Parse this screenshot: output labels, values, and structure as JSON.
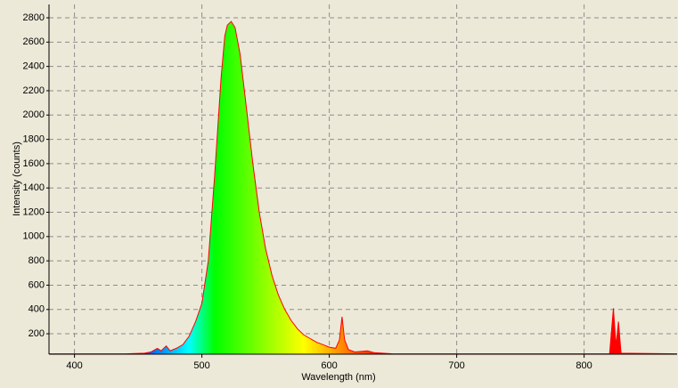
{
  "chart_data": {
    "type": "area",
    "x_label": "Wavelength (nm)",
    "y_label": "Intensity (counts)",
    "x": [
      380,
      400,
      440,
      455,
      460,
      465,
      468,
      472,
      475,
      480,
      485,
      490,
      495,
      500,
      505,
      510,
      515,
      518,
      520,
      523,
      526,
      530,
      535,
      540,
      545,
      550,
      555,
      560,
      565,
      570,
      575,
      580,
      585,
      590,
      595,
      600,
      605,
      608,
      610,
      612,
      615,
      620,
      630,
      635,
      650,
      700,
      820,
      823,
      825,
      827,
      829,
      873
    ],
    "y": [
      35,
      35,
      35,
      40,
      50,
      80,
      60,
      100,
      60,
      80,
      110,
      180,
      300,
      450,
      800,
      1500,
      2300,
      2650,
      2740,
      2770,
      2720,
      2500,
      2050,
      1600,
      1200,
      900,
      680,
      520,
      400,
      310,
      240,
      190,
      160,
      130,
      110,
      90,
      80,
      150,
      340,
      150,
      70,
      50,
      60,
      45,
      35,
      35,
      35,
      410,
      100,
      300,
      40,
      35
    ],
    "line_color": "#ff0000",
    "xlim": [
      380,
      873
    ],
    "ylim": [
      32,
      2910
    ],
    "xticks": [
      400,
      500,
      600,
      700,
      800
    ],
    "yticks": [
      200,
      400,
      600,
      800,
      1000,
      1200,
      1400,
      1600,
      1800,
      2000,
      2200,
      2400,
      2600,
      2800
    ],
    "grid": true
  }
}
